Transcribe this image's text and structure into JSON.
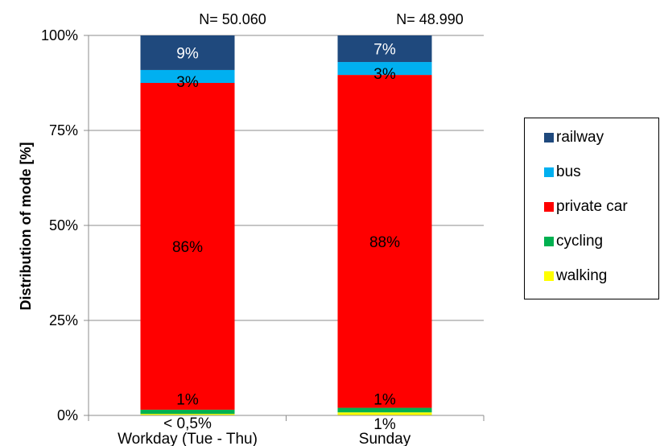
{
  "chart_data": {
    "type": "bar",
    "stacked": true,
    "ylabel": "Distribution of mode [%]",
    "xlabel": "",
    "ylim": [
      0,
      100
    ],
    "yticks": [
      "0%",
      "25%",
      "50%",
      "75%",
      "100%"
    ],
    "categories": [
      "Workday (Tue - Thu)",
      "Sunday"
    ],
    "sample_sizes": [
      "N= 50.060",
      "N= 48.990"
    ],
    "series": [
      {
        "name": "walking",
        "color": "#ffff00",
        "values": [
          0.4,
          0.8
        ],
        "labels": [
          "< 0,5%",
          "1%"
        ]
      },
      {
        "name": "cycling",
        "color": "#00b050",
        "values": [
          1.1,
          1.2
        ],
        "labels": [
          "1%",
          "1%"
        ]
      },
      {
        "name": "private car",
        "color": "#ff0000",
        "values": [
          86.0,
          87.6
        ],
        "labels": [
          "86%",
          "88%"
        ]
      },
      {
        "name": "bus",
        "color": "#00b0f0",
        "values": [
          3.4,
          3.4
        ],
        "labels": [
          "3%",
          "3%"
        ]
      },
      {
        "name": "railway",
        "color": "#1f497d",
        "values": [
          9.1,
          7.0
        ],
        "labels": [
          "9%",
          "7%"
        ]
      }
    ],
    "legend_order": [
      "railway",
      "bus",
      "private car",
      "cycling",
      "walking"
    ],
    "legend_position": "right",
    "grid": true
  }
}
